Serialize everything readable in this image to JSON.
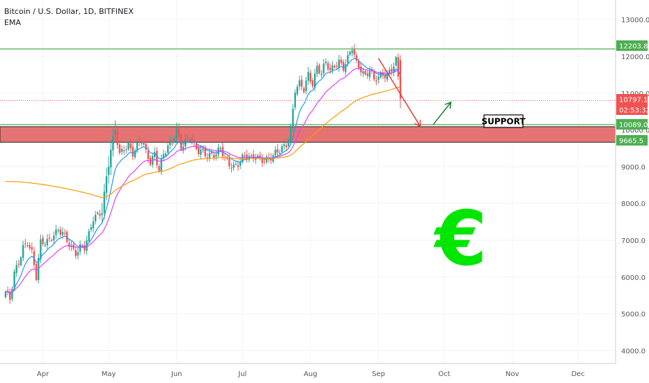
{
  "header": {
    "symbol_title": "Bitcoin / U.S. Dollar, 1D, BITFINEX",
    "indicator": "EMA"
  },
  "price_axis": {
    "ticks": [
      {
        "value": 13000,
        "label": "13000.0"
      },
      {
        "value": 12000,
        "label": "12000.0"
      },
      {
        "value": 11000,
        "label": "11000.0"
      },
      {
        "value": 10000,
        "label": "10000.0"
      },
      {
        "value": 9000,
        "label": "9000.0"
      },
      {
        "value": 8000,
        "label": "8000.0"
      },
      {
        "value": 7000,
        "label": "7000.0"
      },
      {
        "value": 6000,
        "label": "6000.0"
      },
      {
        "value": 5000,
        "label": "5000.0"
      },
      {
        "value": 4000,
        "label": "4000.0"
      }
    ],
    "tags": [
      {
        "label": "12203.8",
        "value": 12203.8,
        "color": "#4caf50"
      },
      {
        "label": "10797.1",
        "value": 10797.1,
        "color": "#ef5350"
      },
      {
        "label": "02:53:32",
        "value": 10540,
        "color": "#ef5350"
      },
      {
        "label": "10089.0",
        "value": 10089.0,
        "color": "#4caf50"
      },
      {
        "label": "9665.5",
        "value": 9665.5,
        "color": "#4caf50"
      }
    ]
  },
  "time_axis": {
    "labels": [
      {
        "label": "Apr",
        "day": 17
      },
      {
        "label": "May",
        "day": 47
      },
      {
        "label": "Jun",
        "day": 78
      },
      {
        "label": "Jul",
        "day": 108
      },
      {
        "label": "Aug",
        "day": 139
      },
      {
        "label": "Sep",
        "day": 170
      },
      {
        "label": "Oct",
        "day": 200
      },
      {
        "label": "Nov",
        "day": 231
      },
      {
        "label": "Dec",
        "day": 261
      }
    ]
  },
  "annotations": {
    "support_label": "SUPPORT",
    "euro_symbol": "€",
    "resistance_level": 12203.8,
    "support_zone": {
      "high": 10089.0,
      "low": 9665.5
    },
    "red_arrow": {
      "from": {
        "day": 170,
        "price": 11950
      },
      "to": {
        "day": 189,
        "price": 10100
      }
    },
    "green_arrow": {
      "from": {
        "day": 195,
        "price": 10150
      },
      "to": {
        "day": 203,
        "price": 10750
      }
    }
  },
  "colors": {
    "up": "#26a69a",
    "down": "#ef5350",
    "ema_fast": "#2196f3",
    "ema_mid": "#e040fb",
    "ema_slow": "#ff9800",
    "support_zone": "#e57373",
    "level_line": "#4caf50",
    "euro": "#00e600"
  },
  "chart_data": {
    "type": "candlestick",
    "title": "Bitcoin / U.S. Dollar, 1D, BITFINEX",
    "xlabel": "",
    "ylabel": "",
    "ylim": [
      3700,
      13300
    ],
    "x_range_days": [
      0,
      280
    ],
    "anchor_prices": [
      [
        0,
        5600
      ],
      [
        2,
        5350
      ],
      [
        4,
        6050
      ],
      [
        6,
        6400
      ],
      [
        8,
        6850
      ],
      [
        10,
        7000
      ],
      [
        12,
        6650
      ],
      [
        14,
        5950
      ],
      [
        16,
        6900
      ],
      [
        18,
        6950
      ],
      [
        20,
        7050
      ],
      [
        22,
        7200
      ],
      [
        24,
        7250
      ],
      [
        26,
        7150
      ],
      [
        28,
        6950
      ],
      [
        30,
        6800
      ],
      [
        32,
        6700
      ],
      [
        34,
        6850
      ],
      [
        36,
        6800
      ],
      [
        38,
        7100
      ],
      [
        40,
        7550
      ],
      [
        42,
        7700
      ],
      [
        44,
        7850
      ],
      [
        46,
        8750
      ],
      [
        48,
        9450
      ],
      [
        50,
        9950
      ],
      [
        52,
        9300
      ],
      [
        54,
        9500
      ],
      [
        56,
        9650
      ],
      [
        58,
        9400
      ],
      [
        60,
        9550
      ],
      [
        62,
        9700
      ],
      [
        64,
        9350
      ],
      [
        66,
        9150
      ],
      [
        68,
        9400
      ],
      [
        70,
        8950
      ],
      [
        72,
        9300
      ],
      [
        74,
        9500
      ],
      [
        76,
        9650
      ],
      [
        78,
        10050
      ],
      [
        80,
        9600
      ],
      [
        82,
        9700
      ],
      [
        84,
        9800
      ],
      [
        86,
        9500
      ],
      [
        88,
        9400
      ],
      [
        90,
        9450
      ],
      [
        92,
        9350
      ],
      [
        94,
        9350
      ],
      [
        96,
        9300
      ],
      [
        98,
        9450
      ],
      [
        100,
        9200
      ],
      [
        102,
        9100
      ],
      [
        104,
        9050
      ],
      [
        106,
        9100
      ],
      [
        108,
        9200
      ],
      [
        110,
        9250
      ],
      [
        112,
        9200
      ],
      [
        114,
        9350
      ],
      [
        116,
        9250
      ],
      [
        118,
        9200
      ],
      [
        120,
        9150
      ],
      [
        122,
        9250
      ],
      [
        124,
        9400
      ],
      [
        126,
        9550
      ],
      [
        128,
        9650
      ],
      [
        130,
        10000
      ],
      [
        132,
        11050
      ],
      [
        134,
        11200
      ],
      [
        136,
        11100
      ],
      [
        138,
        11550
      ],
      [
        140,
        11300
      ],
      [
        142,
        11700
      ],
      [
        144,
        11500
      ],
      [
        146,
        11800
      ],
      [
        148,
        11600
      ],
      [
        150,
        11800
      ],
      [
        152,
        11900
      ],
      [
        154,
        11700
      ],
      [
        156,
        11900
      ],
      [
        158,
        12200
      ],
      [
        160,
        11800
      ],
      [
        162,
        11700
      ],
      [
        164,
        11500
      ],
      [
        166,
        11650
      ],
      [
        168,
        11300
      ],
      [
        170,
        11400
      ],
      [
        172,
        11500
      ],
      [
        174,
        11550
      ],
      [
        176,
        11700
      ],
      [
        178,
        11900
      ],
      [
        180,
        10850
      ]
    ],
    "series": [
      {
        "name": "Price",
        "kind": "candles"
      },
      {
        "name": "EMA",
        "kind": "line"
      },
      {
        "name": "EMA",
        "kind": "line"
      },
      {
        "name": "EMA",
        "kind": "line"
      }
    ]
  }
}
